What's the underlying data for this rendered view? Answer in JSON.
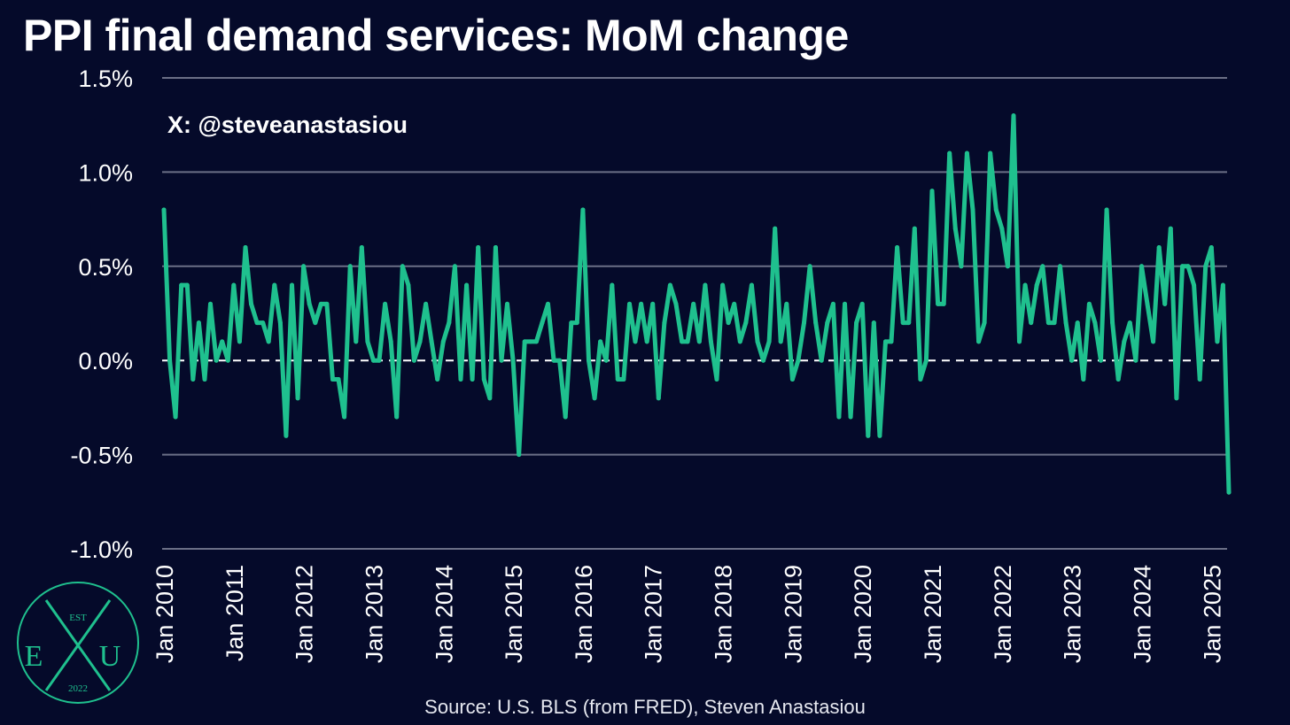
{
  "chart_data": {
    "type": "line",
    "title": "PPI final demand services: MoM change",
    "xlabel": "",
    "ylabel": "",
    "ylim": [
      -1.0,
      1.5
    ],
    "yticks": [
      "1.5%",
      "1.0%",
      "0.5%",
      "0.0%",
      "-0.5%",
      "-1.0%"
    ],
    "ytick_values": [
      1.5,
      1.0,
      0.5,
      0.0,
      -0.5,
      -1.0
    ],
    "xticks": [
      "Jan 2010",
      "Jan 2011",
      "Jan 2012",
      "Jan 2013",
      "Jan 2014",
      "Jan 2015",
      "Jan 2016",
      "Jan 2017",
      "Jan 2018",
      "Jan 2019",
      "Jan 2020",
      "Jan 2021",
      "Jan 2022",
      "Jan 2023",
      "Jan 2024",
      "Jan 2025"
    ],
    "start": "Jan 2010",
    "zero_line": "dashed",
    "grid": true,
    "line_color": "#1fc08e",
    "series": [
      {
        "name": "PPI final demand services MoM %",
        "values": [
          0.8,
          0.0,
          -0.3,
          0.4,
          0.4,
          -0.1,
          0.2,
          -0.1,
          0.3,
          0.0,
          0.1,
          0.0,
          0.4,
          0.1,
          0.6,
          0.3,
          0.2,
          0.2,
          0.1,
          0.4,
          0.2,
          -0.4,
          0.4,
          -0.2,
          0.5,
          0.3,
          0.2,
          0.3,
          0.3,
          -0.1,
          -0.1,
          -0.3,
          0.5,
          0.1,
          0.6,
          0.1,
          0.0,
          0.0,
          0.3,
          0.1,
          -0.3,
          0.5,
          0.4,
          0.0,
          0.1,
          0.3,
          0.1,
          -0.1,
          0.1,
          0.2,
          0.5,
          -0.1,
          0.4,
          -0.1,
          0.6,
          -0.1,
          -0.2,
          0.6,
          0.0,
          0.3,
          0.0,
          -0.5,
          0.1,
          0.1,
          0.1,
          0.2,
          0.3,
          0.0,
          0.0,
          -0.3,
          0.2,
          0.2,
          0.8,
          0.0,
          -0.2,
          0.1,
          0.0,
          0.4,
          -0.1,
          -0.1,
          0.3,
          0.1,
          0.3,
          0.1,
          0.3,
          -0.2,
          0.2,
          0.4,
          0.3,
          0.1,
          0.1,
          0.3,
          0.1,
          0.4,
          0.1,
          -0.1,
          0.4,
          0.2,
          0.3,
          0.1,
          0.2,
          0.4,
          0.1,
          0.0,
          0.1,
          0.7,
          0.1,
          0.3,
          -0.1,
          0.0,
          0.2,
          0.5,
          0.2,
          0.0,
          0.2,
          0.3,
          -0.3,
          0.3,
          -0.3,
          0.2,
          0.3,
          -0.4,
          0.2,
          -0.4,
          0.1,
          0.1,
          0.6,
          0.2,
          0.2,
          0.7,
          -0.1,
          0.0,
          0.9,
          0.3,
          0.3,
          1.1,
          0.7,
          0.5,
          1.1,
          0.8,
          0.1,
          0.2,
          1.1,
          0.8,
          0.7,
          0.5,
          1.3,
          0.1,
          0.4,
          0.2,
          0.4,
          0.5,
          0.2,
          0.2,
          0.5,
          0.2,
          0.0,
          0.2,
          -0.1,
          0.3,
          0.2,
          0.0,
          0.8,
          0.2,
          -0.1,
          0.1,
          0.2,
          0.0,
          0.5,
          0.3,
          0.1,
          0.6,
          0.3,
          0.7,
          -0.2,
          0.5,
          0.5,
          0.4,
          -0.1,
          0.5,
          0.6,
          0.1,
          0.4,
          -0.7
        ]
      }
    ]
  },
  "annotation": {
    "handle": "X: @steveanastasiou"
  },
  "source": "Source: U.S. BLS (from FRED), Steven Anastasiou",
  "logo": {
    "est": "EST",
    "left": "E",
    "center": "X",
    "right": "U",
    "year": "2022"
  }
}
